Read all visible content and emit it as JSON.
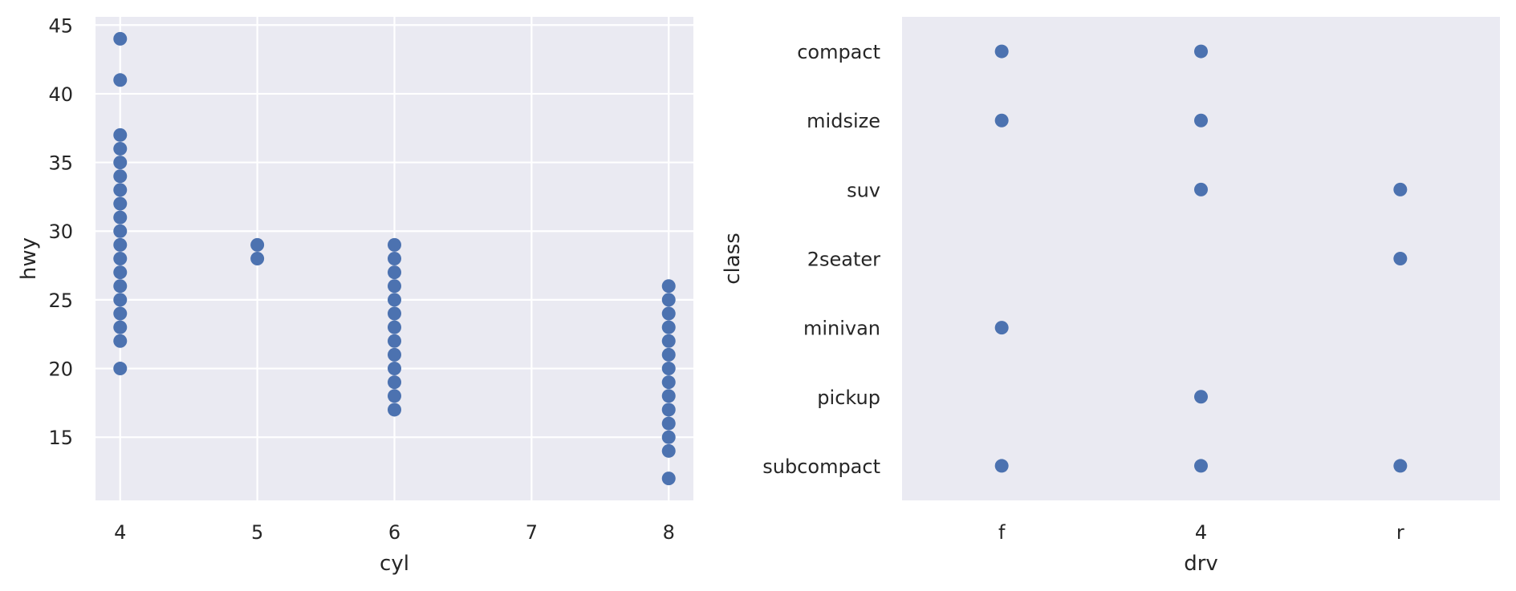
{
  "chart_data": [
    {
      "type": "scatter",
      "title": "",
      "xlabel": "cyl",
      "ylabel": "hwy",
      "x_ticks": [
        4,
        5,
        6,
        7,
        8
      ],
      "y_ticks": [
        15,
        20,
        25,
        30,
        35,
        40,
        45
      ],
      "xlim": [
        3.82,
        8.18
      ],
      "ylim": [
        10.4,
        45.6
      ],
      "grid": true,
      "marker_color": "#4c72b0",
      "background_color": "#eaeaf2",
      "grid_color": "#ffffff",
      "points": [
        [
          4,
          20
        ],
        [
          4,
          22
        ],
        [
          4,
          23
        ],
        [
          4,
          24
        ],
        [
          4,
          25
        ],
        [
          4,
          26
        ],
        [
          4,
          27
        ],
        [
          4,
          28
        ],
        [
          4,
          29
        ],
        [
          4,
          30
        ],
        [
          4,
          31
        ],
        [
          4,
          32
        ],
        [
          4,
          33
        ],
        [
          4,
          34
        ],
        [
          4,
          35
        ],
        [
          4,
          36
        ],
        [
          4,
          37
        ],
        [
          4,
          41
        ],
        [
          4,
          44
        ],
        [
          5,
          28
        ],
        [
          5,
          29
        ],
        [
          6,
          17
        ],
        [
          6,
          18
        ],
        [
          6,
          19
        ],
        [
          6,
          20
        ],
        [
          6,
          21
        ],
        [
          6,
          22
        ],
        [
          6,
          23
        ],
        [
          6,
          24
        ],
        [
          6,
          25
        ],
        [
          6,
          26
        ],
        [
          6,
          27
        ],
        [
          6,
          28
        ],
        [
          6,
          29
        ],
        [
          8,
          12
        ],
        [
          8,
          14
        ],
        [
          8,
          15
        ],
        [
          8,
          16
        ],
        [
          8,
          17
        ],
        [
          8,
          18
        ],
        [
          8,
          19
        ],
        [
          8,
          20
        ],
        [
          8,
          21
        ],
        [
          8,
          22
        ],
        [
          8,
          23
        ],
        [
          8,
          24
        ],
        [
          8,
          25
        ],
        [
          8,
          26
        ]
      ]
    },
    {
      "type": "scatter",
      "title": "",
      "xlabel": "drv",
      "ylabel": "class",
      "x_categories": [
        "f",
        "4",
        "r"
      ],
      "y_categories": [
        "compact",
        "midsize",
        "suv",
        "2seater",
        "minivan",
        "pickup",
        "subcompact"
      ],
      "grid": false,
      "marker_color": "#4c72b0",
      "background_color": "#eaeaf2",
      "points": [
        [
          "f",
          "compact"
        ],
        [
          "4",
          "compact"
        ],
        [
          "f",
          "midsize"
        ],
        [
          "4",
          "midsize"
        ],
        [
          "4",
          "suv"
        ],
        [
          "r",
          "suv"
        ],
        [
          "r",
          "2seater"
        ],
        [
          "f",
          "minivan"
        ],
        [
          "4",
          "pickup"
        ],
        [
          "f",
          "subcompact"
        ],
        [
          "4",
          "subcompact"
        ],
        [
          "r",
          "subcompact"
        ]
      ]
    }
  ]
}
